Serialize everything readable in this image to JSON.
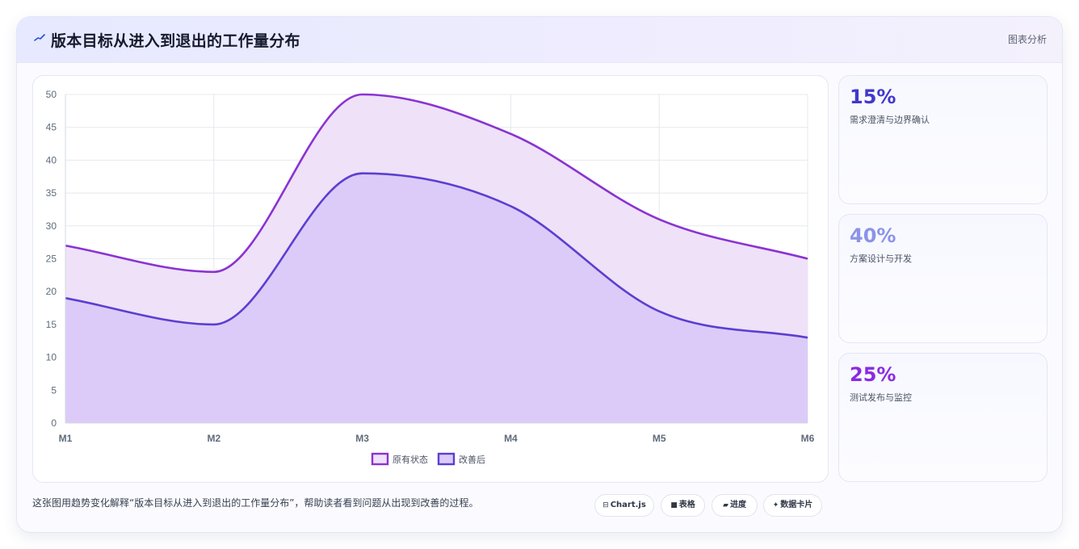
{
  "header": {
    "title": "版本目标从进入到退出的工作量分布",
    "tag": "图表分析"
  },
  "stats": [
    {
      "value": "15%",
      "label": "需求澄清与边界确认",
      "color": "#4338ca"
    },
    {
      "value": "40%",
      "label": "方案设计与开发",
      "color": "#8b93e8"
    },
    {
      "value": "25%",
      "label": "测试发布与监控",
      "color": "#8a2be2"
    }
  ],
  "footer": {
    "description": "这张图用趋势变化解释“版本目标从进入到退出的工作量分布”，帮助读者看到问题从出现到改善的过程。",
    "chips": [
      {
        "icon": "⊟",
        "label": "Chart.js"
      },
      {
        "icon": "■",
        "label": "表格"
      },
      {
        "icon": "▰",
        "label": "进度"
      },
      {
        "icon": "✦",
        "label": "数据卡片"
      }
    ]
  },
  "chart_data": {
    "type": "area",
    "categories": [
      "M1",
      "M2",
      "M3",
      "M4",
      "M5",
      "M6"
    ],
    "series": [
      {
        "name": "原有状态",
        "values": [
          27,
          23,
          50,
          44,
          31,
          25
        ],
        "color": "#8a33d1",
        "fill": "#eee1f8"
      },
      {
        "name": "改善后",
        "values": [
          19,
          15,
          38,
          33,
          17,
          13
        ],
        "color": "#5b3fd0",
        "fill": "#dccbf8"
      }
    ],
    "ylim": [
      0,
      50
    ],
    "yticks": [
      0,
      5,
      10,
      15,
      20,
      25,
      30,
      35,
      40,
      45,
      50
    ],
    "grid": true,
    "legend": "bottom"
  }
}
